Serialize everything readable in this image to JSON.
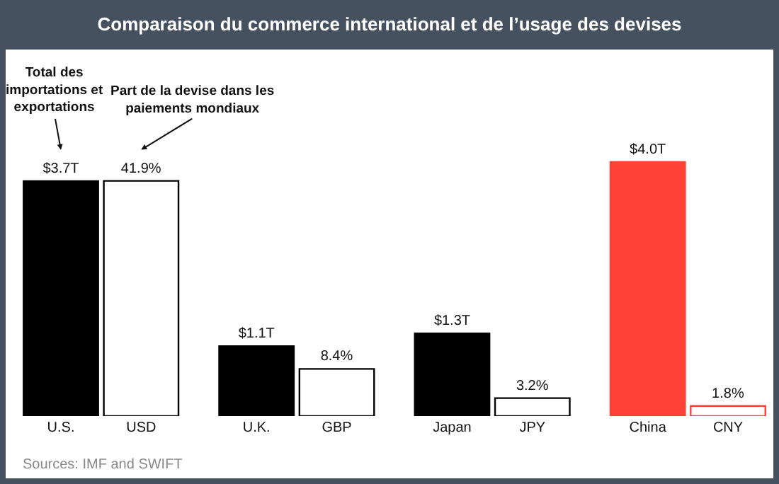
{
  "chart_data": {
    "type": "bar",
    "title": "Comparaison du commerce international et de l’usage des devises",
    "categories": [
      "U.S.",
      "USD",
      "U.K.",
      "GBP",
      "Japan",
      "JPY",
      "China",
      "CNY"
    ],
    "series": [
      {
        "values": [
          3.7,
          null,
          1.1,
          null,
          1.3,
          null,
          4.0,
          null
        ],
        "colors": [
          "#000000",
          null,
          "#000000",
          null,
          "#000000",
          null,
          "#ff4136",
          null
        ],
        "value_labels": [
          "$3.7T",
          null,
          "$1.1T",
          null,
          "$1.3T",
          null,
          "$4.0T",
          null
        ]
      },
      {
        "axis": "y2",
        "values": [
          null,
          41.9,
          null,
          8.4,
          null,
          3.2,
          null,
          1.8
        ],
        "colors": [
          null,
          "#ffffff",
          null,
          "#ffffff",
          null,
          "#ffffff",
          null,
          "#ffffff"
        ],
        "value_labels": [
          null,
          "41.9%",
          null,
          "8.4%",
          null,
          "3.2%",
          null,
          "1.8%"
        ]
      }
    ],
    "ylim": [
      0,
      5.77
    ],
    "y2lim": [
      0,
      65.3
    ],
    "tick_labels": "x",
    "annotations": [
      "Total des importations et exportations",
      "Part de la devise dans les paiements mondiaux",
      "Sources: IMF and SWIFT"
    ]
  }
}
